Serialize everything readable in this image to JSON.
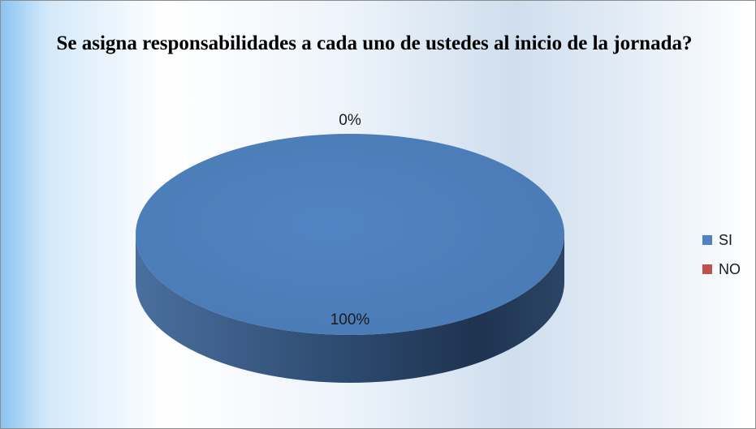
{
  "chart_data": {
    "type": "pie",
    "title": "Se asigna responsabilidades a cada uno de ustedes al inicio de la jornada?",
    "categories": [
      "SI",
      "NO"
    ],
    "values": [
      100,
      0
    ],
    "data_labels": [
      "100%",
      "0%"
    ],
    "colors": [
      "#4f81bd",
      "#c0504d"
    ],
    "style": "3d",
    "legend_position": "right"
  }
}
